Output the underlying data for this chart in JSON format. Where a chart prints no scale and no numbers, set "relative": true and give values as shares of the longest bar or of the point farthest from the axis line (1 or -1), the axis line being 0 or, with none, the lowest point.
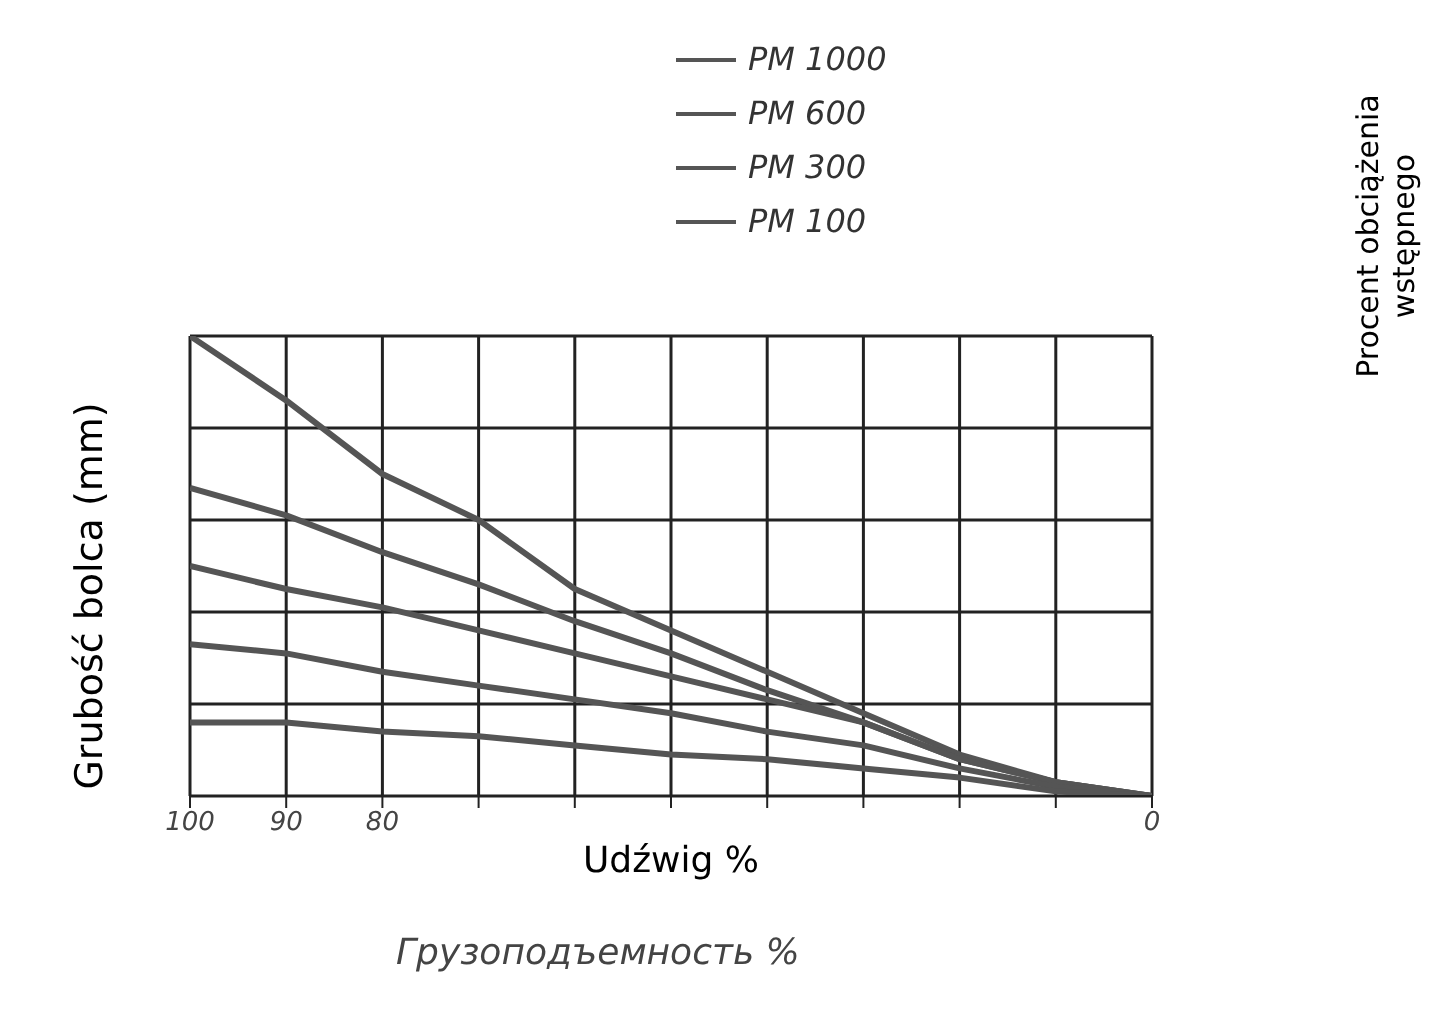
{
  "chart_data": {
    "type": "line",
    "relative": true,
    "xlabel": "Udźwig %",
    "ylabel": "Grubość bolca (mm)",
    "annotations": [
      "Грузоподъемность %",
      "Procent obciążenia wstępnego"
    ],
    "x": [
      100,
      90,
      80,
      70,
      60,
      50,
      40,
      30,
      20,
      10,
      0
    ],
    "xlim": [
      100,
      0
    ],
    "xticks": [
      100,
      90,
      80,
      {
        "value": 70,
        "label": null
      },
      {
        "value": 60,
        "label": null
      },
      {
        "value": 50,
        "label": null
      },
      {
        "value": 40,
        "label": null
      },
      {
        "value": 30,
        "label": null
      },
      {
        "value": 20,
        "label": null
      },
      {
        "value": 10,
        "label": null
      },
      0
    ],
    "grid": true,
    "legend": "top",
    "marker": "none",
    "line_style": "solid",
    "series": [
      {
        "name": "PM 1000",
        "color": "#555555",
        "values": [
          1,
          0.86,
          0.7,
          0.6,
          0.45,
          0.36,
          0.27,
          0.18,
          0.09,
          0.03,
          0
        ]
      },
      {
        "name": "PM 600",
        "color": "#555555",
        "values": [
          0.67,
          0.61,
          0.53,
          0.46,
          0.38,
          0.31,
          0.23,
          0.16,
          0.08,
          0.03,
          0
        ]
      },
      {
        "name": "PM 300",
        "color": "#555555",
        "values": [
          0.5,
          0.45,
          0.41,
          0.36,
          0.31,
          0.26,
          0.21,
          0.16,
          0.08,
          0.03,
          0
        ]
      },
      {
        "name": "PM 100",
        "color": "#555555",
        "values": [
          0.33,
          0.31,
          0.27,
          0.24,
          0.21,
          0.18,
          0.14,
          0.11,
          0.06,
          0.02,
          0
        ]
      },
      {
        "color": "#555555",
        "values": [
          0.16,
          0.16,
          0.14,
          0.13,
          0.11,
          0.09,
          0.08,
          0.06,
          0.04,
          0.01,
          0
        ]
      }
    ]
  }
}
